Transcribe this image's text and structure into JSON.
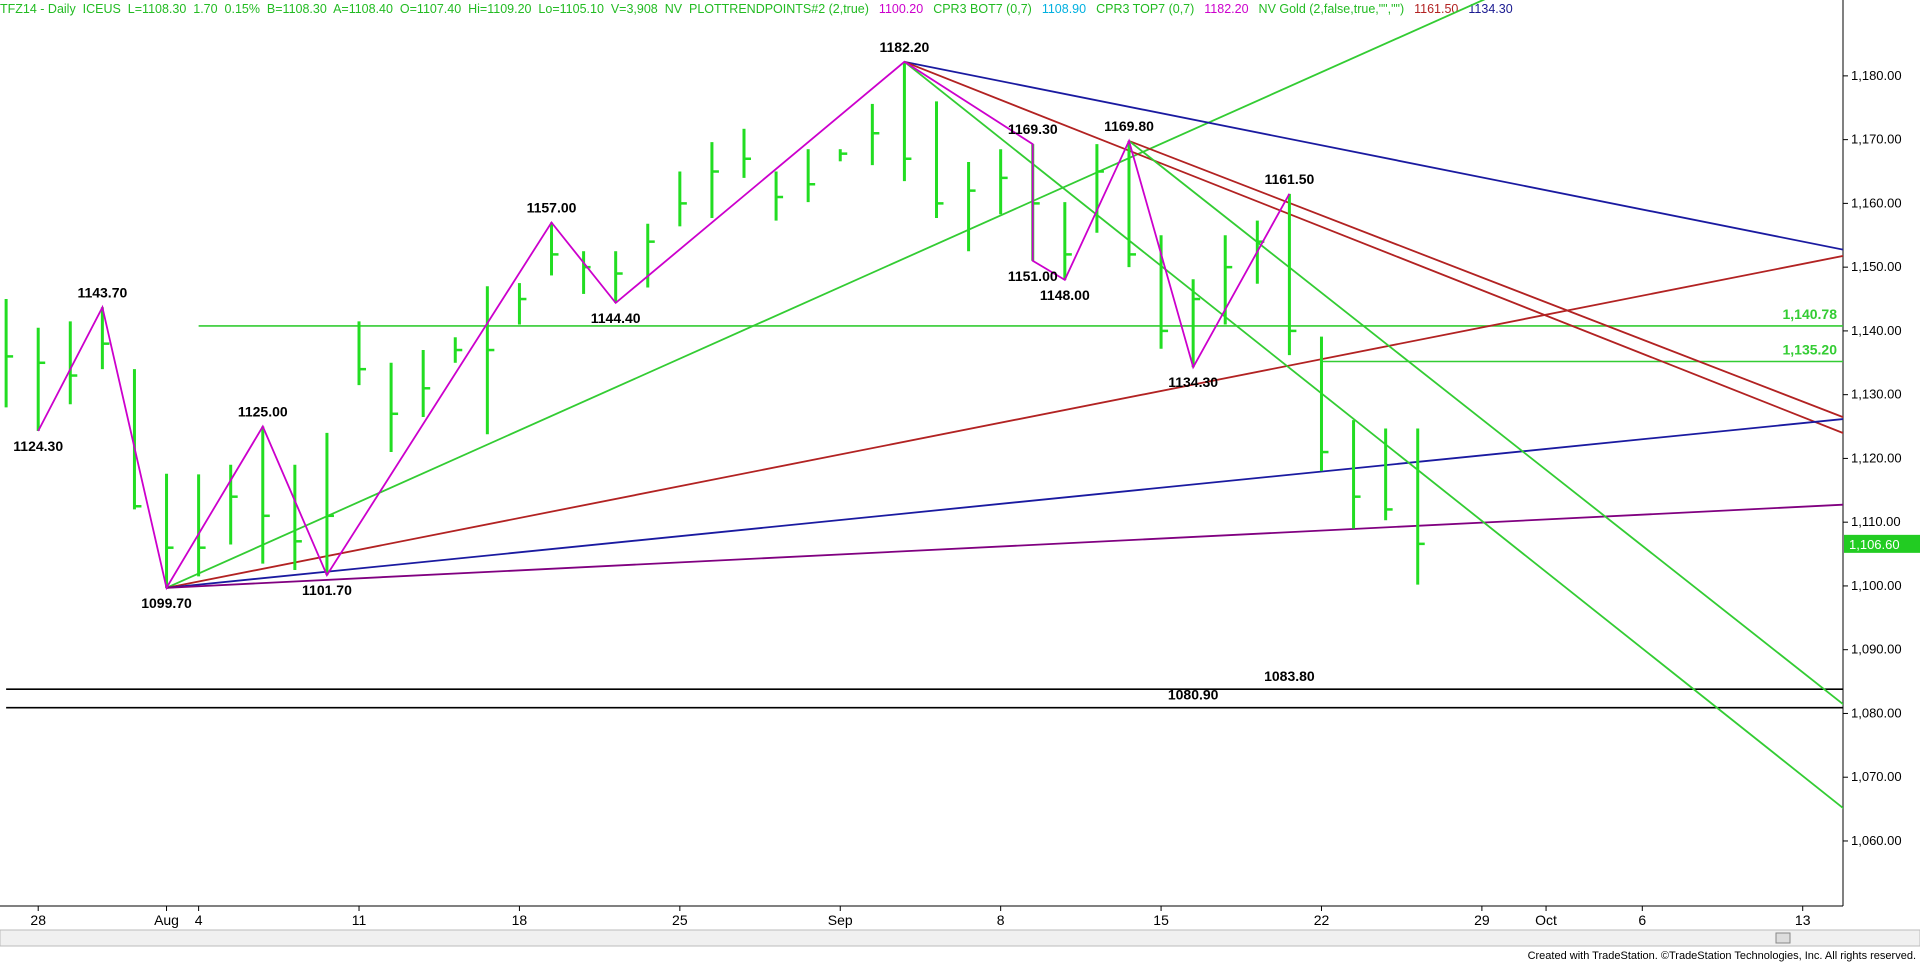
{
  "header": [
    {
      "text": "TFZ14 - Daily  ICEUS  L=1108.30  1.70  0.15%  B=1108.30  A=1108.40  O=1107.40  Hi=1109.20  Lo=1105.10  V=3,908  NV  PLOTTRENDPOINTS#2 (2,true)",
      "color": "#22bb22"
    },
    {
      "text": "1100.20",
      "color": "#cc00cc"
    },
    {
      "text": "CPR3 BOT7 (0,7)",
      "color": "#22bb22"
    },
    {
      "text": "1108.90",
      "color": "#00b0e0"
    },
    {
      "text": "CPR3 TOP7 (0,7)",
      "color": "#22bb22"
    },
    {
      "text": "1182.20",
      "color": "#cc00cc"
    },
    {
      "text": "NV Gold (2,false,true,\"\",\"\")",
      "color": "#22bb22"
    },
    {
      "text": "1161.50",
      "color": "#b22222"
    },
    {
      "text": "1134.30",
      "color": "#1a1a90"
    }
  ],
  "footer": "Created with TradeStation. ©TradeStation Technologies, Inc. All rights reserved.",
  "chart_data": {
    "type": "ohlc",
    "color": "#22dd22",
    "categories": [
      null,
      "28",
      null,
      null,
      null,
      "Aug",
      "4",
      null,
      null,
      null,
      null,
      "11",
      null,
      null,
      null,
      null,
      "18",
      null,
      null,
      null,
      null,
      "25",
      null,
      null,
      null,
      null,
      "Sep",
      null,
      null,
      null,
      null,
      "8",
      null,
      null,
      null,
      null,
      "15",
      null,
      null,
      null,
      null,
      "22",
      null,
      null,
      null,
      null,
      "29",
      null,
      "Oct",
      null,
      null,
      "6",
      null,
      null,
      null,
      null,
      "13",
      null
    ],
    "high": [
      1145,
      1140.5,
      1141.5,
      1143.7,
      1134,
      1117.6,
      1117.5,
      1119,
      1125,
      1119,
      1124,
      1141.5,
      1135,
      1137,
      1139,
      1147,
      1147.5,
      1157,
      1152.5,
      1152.5,
      1156.8,
      1165,
      1169.6,
      1171.7,
      1165,
      1168.5,
      1168.5,
      1175.6,
      1182.2,
      1176,
      1166.5,
      1168.5,
      1169.3,
      1160.2,
      1169.3,
      1169.8,
      1155,
      1148.1,
      1155,
      1157.3,
      1161.5,
      1139.1,
      1126,
      1124.7,
      1124.7,
      null,
      null,
      null,
      null,
      null,
      null,
      null,
      null,
      null,
      null,
      null,
      null,
      null
    ],
    "low": [
      1128,
      1124.3,
      1128.5,
      1134,
      1112,
      1099.7,
      1101.5,
      1106.5,
      1103.5,
      1102.5,
      1101.7,
      1131.5,
      1121,
      1126.5,
      1135,
      1123.8,
      1141,
      1148.7,
      1145.8,
      1144.4,
      1146.8,
      1156.4,
      1157.7,
      1164,
      1157.3,
      1160.2,
      1166.6,
      1166,
      1163.5,
      1157.7,
      1152.5,
      1158.3,
      1151,
      1148,
      1155.4,
      1150,
      1137.2,
      1134.3,
      1141,
      1147.4,
      1136.2,
      1118,
      1109,
      1110.3,
      1100.2,
      null,
      null,
      null,
      null,
      null,
      null,
      null,
      null,
      null,
      null,
      null,
      null,
      null
    ],
    "close": [
      1136,
      1135,
      1133,
      1138,
      1112.5,
      1106,
      1106,
      1114,
      1111,
      1107,
      1111,
      1134,
      1127,
      1131,
      1137,
      1137,
      1145,
      1152,
      1150,
      1149,
      1154,
      1160,
      1165,
      1167,
      1161,
      1163,
      1167.8,
      1171,
      1167,
      1160,
      1162,
      1164,
      1160,
      1152,
      1165,
      1152,
      1140,
      1145,
      1150,
      1154,
      1140,
      1121,
      1114,
      1112,
      1106.6,
      null,
      null,
      null,
      null,
      null,
      null,
      null,
      null,
      null,
      null,
      null,
      null,
      null
    ],
    "ylim": [
      1049.8,
      1191.9
    ],
    "yticks": [
      {
        "value": 1060,
        "label": "1,060.00"
      },
      {
        "value": 1070,
        "label": "1,070.00"
      },
      {
        "value": 1080,
        "label": "1,080.00"
      },
      {
        "value": 1090,
        "label": "1,090.00"
      },
      {
        "value": 1100,
        "label": "1,100.00"
      },
      {
        "value": 1110,
        "label": "1,110.00"
      },
      {
        "value": 1120,
        "label": "1,120.00"
      },
      {
        "value": 1130,
        "label": "1,130.00"
      },
      {
        "value": 1140,
        "label": "1,140.00"
      },
      {
        "value": 1150,
        "label": "1,150.00"
      },
      {
        "value": 1160,
        "label": "1,160.00"
      },
      {
        "value": 1170,
        "label": "1,170.00"
      },
      {
        "value": 1180,
        "label": "1,180.00"
      }
    ],
    "annotations": [
      {
        "value": 1124.3,
        "label": "1124.30"
      },
      {
        "value": 1143.7,
        "label": "1143.70"
      },
      {
        "value": 1099.7,
        "label": "1099.70"
      },
      {
        "value": 1125,
        "label": "1125.00"
      },
      {
        "value": 1101.7,
        "label": "1101.70"
      },
      {
        "value": 1157,
        "label": "1157.00"
      },
      {
        "value": 1144.4,
        "label": "1144.40"
      },
      {
        "value": 1182.2,
        "label": "1182.20"
      },
      {
        "value": 1169.3,
        "label": "1169.30"
      },
      {
        "value": 1151,
        "label": "1151.00"
      },
      {
        "value": 1148,
        "label": "1148.00"
      },
      {
        "value": 1169.8,
        "label": "1169.80"
      },
      {
        "value": 1134.3,
        "label": "1134.30"
      },
      {
        "value": 1161.5,
        "label": "1161.50"
      }
    ],
    "zigzag_color": "#cc00cc",
    "trendlines": [
      {
        "color": "#33cc33",
        "x": [
          5,
          50
        ],
        "y": [
          1099.7,
          1200.8
        ]
      },
      {
        "color": "#1a1aa0",
        "x": [
          28,
          57.5
        ],
        "y": [
          1182.2,
          1152.5
        ]
      },
      {
        "color": "#b22222",
        "x": [
          28,
          57.5
        ],
        "y": [
          1182.2,
          1123.5
        ]
      },
      {
        "color": "#b22222",
        "x": [
          35,
          57.5
        ],
        "y": [
          1169.8,
          1126
        ]
      },
      {
        "color": "#b22222",
        "x": [
          5,
          57.5
        ],
        "y": [
          1099.7,
          1152
        ]
      },
      {
        "color": "#1a1aa0",
        "x": [
          5,
          57.5
        ],
        "y": [
          1099.7,
          1126.3
        ]
      },
      {
        "color": "#800080",
        "x": [
          5,
          57.5
        ],
        "y": [
          1099.7,
          1112.8
        ]
      },
      {
        "color": "#33cc33",
        "x": [
          28,
          57.5
        ],
        "y": [
          1182.2,
          1064.2
        ]
      },
      {
        "color": "#33cc33",
        "x": [
          35,
          57.5
        ],
        "y": [
          1169.8,
          1080.5
        ]
      }
    ],
    "levels": [
      {
        "value": 1140.78,
        "label": "1,140.78",
        "from": 6,
        "color": "#33cc33"
      },
      {
        "value": 1135.2,
        "label": "1,135.20",
        "from": 41,
        "color": "#33cc33"
      },
      {
        "value": 1083.8,
        "label": "1083.80",
        "from": 0,
        "color": "#000000"
      },
      {
        "value": 1080.9,
        "label": "1080.90",
        "from": 0,
        "color": "#000000"
      }
    ],
    "last": {
      "value": 1106.6,
      "label": "1,106.60",
      "color": "#22cc22"
    }
  }
}
